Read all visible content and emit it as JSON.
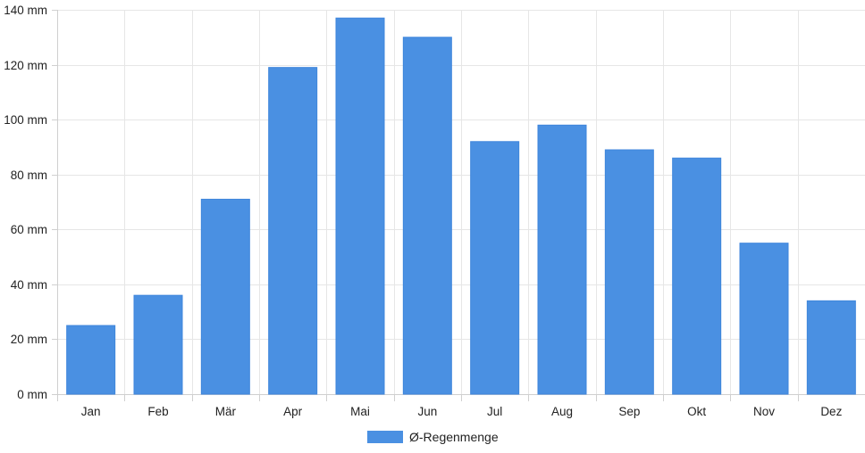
{
  "chart_data": {
    "type": "bar",
    "categories": [
      "Jan",
      "Feb",
      "Mär",
      "Apr",
      "Mai",
      "Jun",
      "Jul",
      "Aug",
      "Sep",
      "Okt",
      "Nov",
      "Dez"
    ],
    "series": [
      {
        "name": "Ø-Regenmenge",
        "color": "#4a90e2",
        "values": [
          25,
          36,
          71,
          119,
          137,
          130,
          92,
          98,
          89,
          86,
          55,
          34
        ]
      }
    ],
    "y_unit": "mm",
    "ylim": [
      0,
      140
    ],
    "yticks": [
      0,
      20,
      40,
      60,
      80,
      100,
      120,
      140
    ],
    "ytick_labels": [
      "0 mm",
      "20 mm",
      "40 mm",
      "60 mm",
      "80 mm",
      "100 mm",
      "120 mm",
      "140 mm"
    ],
    "grid": true,
    "legend": {
      "position": "bottom",
      "label": "Ø-Regenmenge"
    }
  }
}
